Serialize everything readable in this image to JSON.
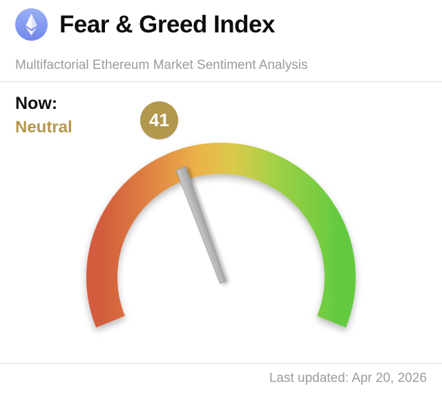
{
  "header": {
    "title": "Fear & Greed Index",
    "subtitle": "Multifactorial Ethereum Market Sentiment Analysis",
    "logo_icon": "ethereum-icon"
  },
  "now": {
    "label": "Now:",
    "classification": "Neutral",
    "value": "41"
  },
  "footer": {
    "last_updated": "Last updated: Apr 20, 2026"
  },
  "chart_data": {
    "type": "gauge",
    "title": "Fear & Greed Index",
    "value": 41,
    "min": 0,
    "max": 100,
    "classification": "Neutral",
    "start_angle_deg": 202,
    "end_angle_deg": -22,
    "colors": {
      "badge": "#b3974d",
      "classification_text": "#b3974d",
      "needle": [
        "#cdcdcd",
        "#9f9f9f"
      ],
      "arc_gradient": [
        {
          "offset": 0,
          "color": "#d25c3c"
        },
        {
          "offset": 0.2,
          "color": "#df8243"
        },
        {
          "offset": 0.4,
          "color": "#ecb249"
        },
        {
          "offset": 0.55,
          "color": "#dcc94b"
        },
        {
          "offset": 0.72,
          "color": "#a4d146"
        },
        {
          "offset": 1,
          "color": "#63ca3f"
        }
      ]
    }
  }
}
